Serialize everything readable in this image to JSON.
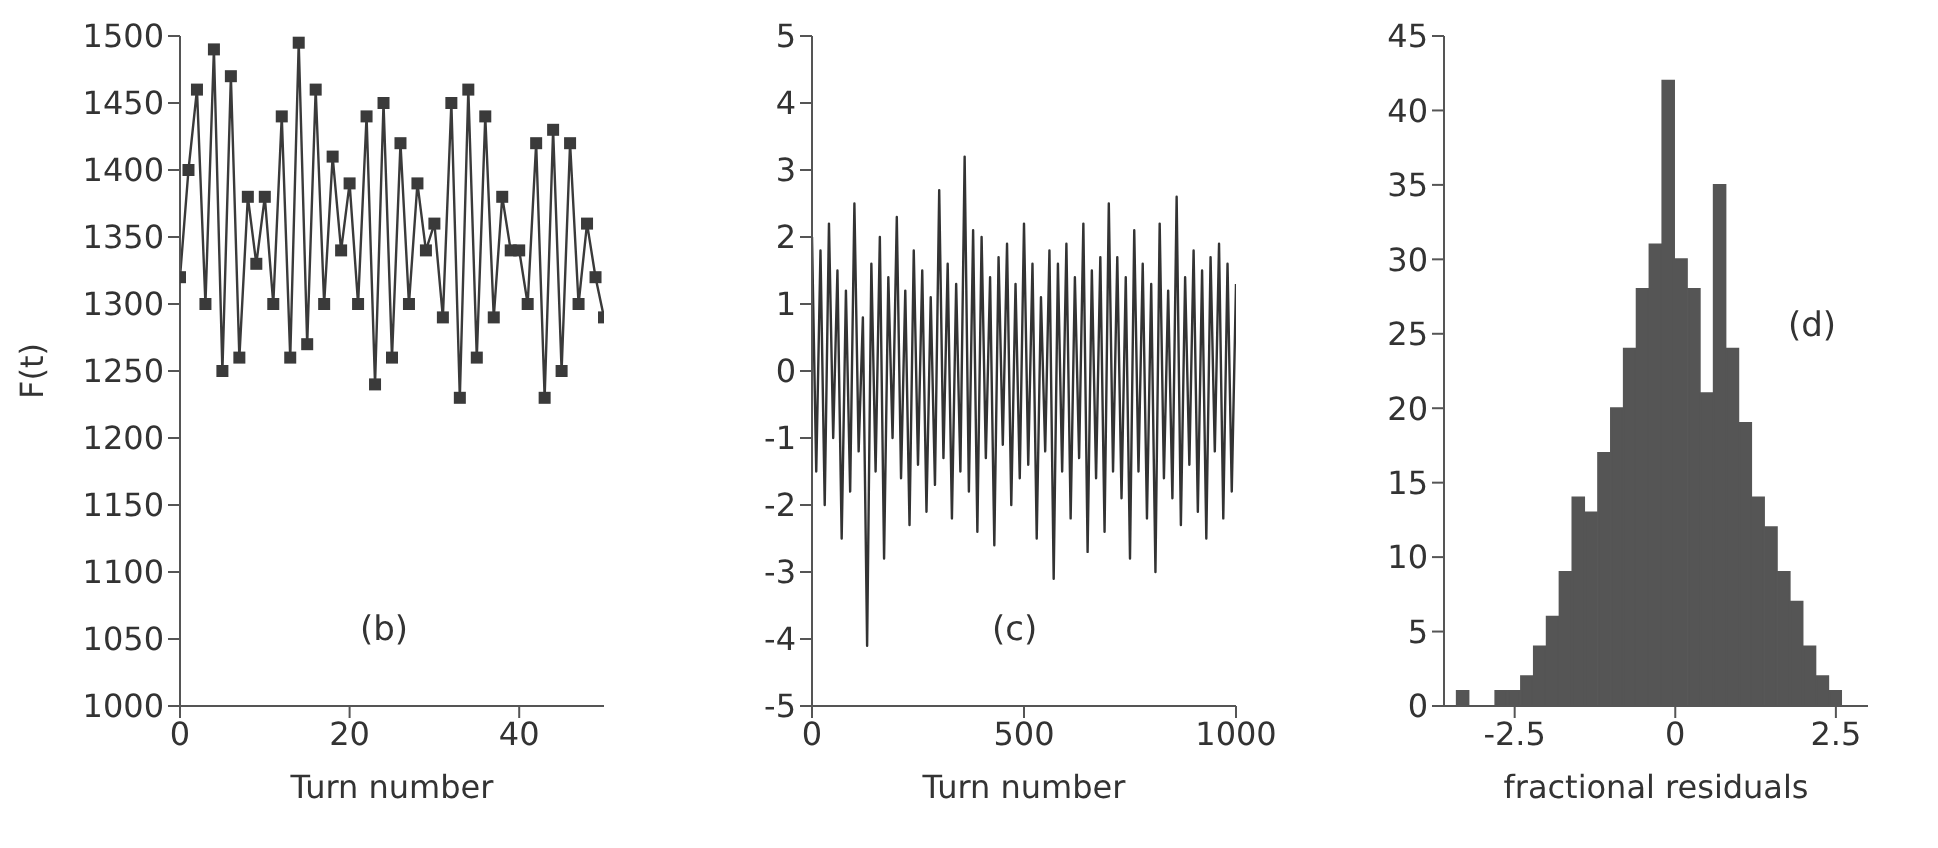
{
  "chart_data": [
    {
      "type": "line",
      "ylabel": "F(t)",
      "xlabel": "Turn number",
      "annotations": [
        "(b)"
      ],
      "xlim": [
        0,
        50
      ],
      "xticks": [
        0,
        20,
        40
      ],
      "ylim": [
        1000,
        1500
      ],
      "yticks": [
        1000,
        1050,
        1100,
        1150,
        1200,
        1250,
        1300,
        1350,
        1400,
        1450,
        1500
      ],
      "marker": "square",
      "x": [
        0,
        1,
        2,
        3,
        4,
        5,
        6,
        7,
        8,
        9,
        10,
        11,
        12,
        13,
        14,
        15,
        16,
        17,
        18,
        19,
        20,
        21,
        22,
        23,
        24,
        25,
        26,
        27,
        28,
        29,
        30,
        31,
        32,
        33,
        34,
        35,
        36,
        37,
        38,
        39,
        40,
        41,
        42,
        43,
        44,
        45,
        46,
        47,
        48,
        49,
        50
      ],
      "series": [
        {
          "color": "#3a3a3a",
          "values": [
            1320,
            1400,
            1460,
            1300,
            1490,
            1250,
            1470,
            1260,
            1380,
            1330,
            1380,
            1300,
            1440,
            1260,
            1495,
            1270,
            1460,
            1300,
            1410,
            1340,
            1390,
            1300,
            1440,
            1240,
            1450,
            1260,
            1420,
            1300,
            1390,
            1340,
            1360,
            1290,
            1450,
            1230,
            1460,
            1260,
            1440,
            1290,
            1380,
            1340,
            1340,
            1300,
            1420,
            1230,
            1430,
            1250,
            1420,
            1300,
            1360,
            1320,
            1290
          ]
        }
      ]
    },
    {
      "type": "line",
      "xlabel": "Turn number",
      "annotations": [
        "(c)"
      ],
      "xlim": [
        0,
        1000
      ],
      "xticks": [
        0,
        500,
        1000
      ],
      "ylim": [
        -5,
        5
      ],
      "yticks": [
        -5,
        -4,
        -3,
        -2,
        -1,
        0,
        1,
        2,
        3,
        4,
        5
      ],
      "marker": "none",
      "x": [
        0,
        10,
        20,
        30,
        40,
        50,
        60,
        70,
        80,
        90,
        100,
        110,
        120,
        130,
        140,
        150,
        160,
        170,
        180,
        190,
        200,
        210,
        220,
        230,
        240,
        250,
        260,
        270,
        280,
        290,
        300,
        310,
        320,
        330,
        340,
        350,
        360,
        370,
        380,
        390,
        400,
        410,
        420,
        430,
        440,
        450,
        460,
        470,
        480,
        490,
        500,
        510,
        520,
        530,
        540,
        550,
        560,
        570,
        580,
        590,
        600,
        610,
        620,
        630,
        640,
        650,
        660,
        670,
        680,
        690,
        700,
        710,
        720,
        730,
        740,
        750,
        760,
        770,
        780,
        790,
        800,
        810,
        820,
        830,
        840,
        850,
        860,
        870,
        880,
        890,
        900,
        910,
        920,
        930,
        940,
        950,
        960,
        970,
        980,
        990,
        1000
      ],
      "series": [
        {
          "color": "#333333",
          "values": [
            2,
            -1.5,
            1.8,
            -2,
            2.2,
            -1,
            1.5,
            -2.5,
            1.2,
            -1.8,
            2.5,
            -1.2,
            0.8,
            -4.1,
            1.6,
            -1.5,
            2,
            -2.8,
            1.4,
            -1,
            2.3,
            -1.6,
            1.2,
            -2.3,
            1.8,
            -1.4,
            1.5,
            -2.1,
            1.1,
            -1.7,
            2.7,
            -1.3,
            1.6,
            -2.2,
            1.3,
            -1.5,
            3.2,
            -1.8,
            2.1,
            -2.4,
            2,
            -1.3,
            1.4,
            -2.6,
            1.7,
            -1.1,
            1.9,
            -2,
            1.3,
            -1.6,
            2.2,
            -1.4,
            1.6,
            -2.5,
            1.1,
            -1.2,
            1.8,
            -3.1,
            1.6,
            -1.5,
            1.9,
            -2.2,
            1.4,
            -1.3,
            2.2,
            -2.7,
            1.5,
            -1.6,
            1.7,
            -2.4,
            2.5,
            -1.5,
            1.7,
            -1.9,
            1.4,
            -2.8,
            2.1,
            -1.5,
            1.6,
            -2.2,
            1.3,
            -3,
            2.2,
            -1.6,
            1.2,
            -1.9,
            2.6,
            -2.3,
            1.4,
            -1.4,
            1.8,
            -2.1,
            1.5,
            -2.5,
            1.7,
            -1.2,
            1.9,
            -2.2,
            1.6,
            -1.8,
            1.3
          ]
        }
      ]
    },
    {
      "type": "histogram",
      "xlabel": "fractional residuals",
      "annotations": [
        "(d)"
      ],
      "xlim": [
        -3.6,
        3
      ],
      "xticks": [
        -2.5,
        0,
        2.5
      ],
      "ylim": [
        0,
        45
      ],
      "yticks": [
        0,
        5,
        10,
        15,
        20,
        25,
        30,
        35,
        40,
        45
      ],
      "color": "#555555",
      "bins": [
        -3.6,
        -3.4,
        -3.2,
        -3,
        -2.8,
        -2.6,
        -2.4,
        -2.2,
        -2,
        -1.8,
        -1.6,
        -1.4,
        -1.2,
        -1,
        -0.8,
        -0.6,
        -0.4,
        -0.2,
        0,
        0.2,
        0.4,
        0.6,
        0.8,
        1,
        1.2,
        1.4,
        1.6,
        1.8,
        2,
        2.2,
        2.4,
        2.6,
        2.8,
        3
      ],
      "values": [
        0,
        1,
        0,
        0,
        1,
        1,
        2,
        4,
        6,
        9,
        14,
        13,
        17,
        20,
        24,
        28,
        31,
        42,
        30,
        28,
        21,
        35,
        24,
        19,
        14,
        12,
        9,
        7,
        4,
        2,
        1,
        0,
        0
      ]
    }
  ]
}
